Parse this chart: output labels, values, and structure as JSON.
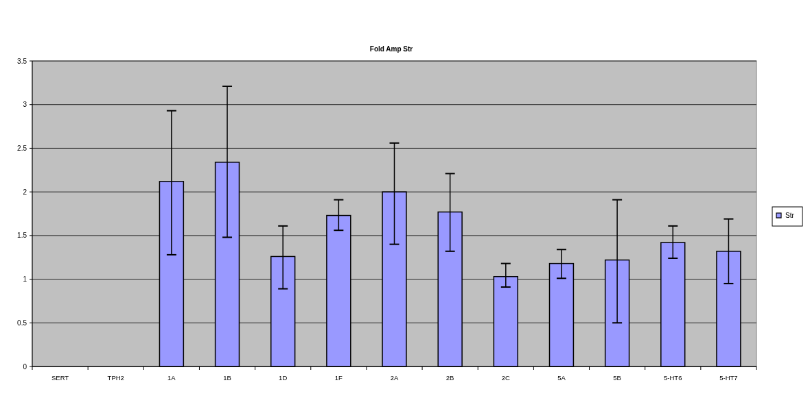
{
  "chart_data": {
    "type": "bar",
    "title": "Fold Amp Str",
    "categories": [
      "SERT",
      "TPH2",
      "1A",
      "1B",
      "1D",
      "1F",
      "2A",
      "2B",
      "2C",
      "5A",
      "5B",
      "5-HT6",
      "5-HT7"
    ],
    "series": [
      {
        "name": "Str",
        "color": "#9999ff",
        "values": [
          null,
          null,
          2.12,
          2.34,
          1.26,
          1.73,
          2.0,
          1.77,
          1.03,
          1.18,
          1.22,
          1.42,
          1.32
        ],
        "errors": [
          null,
          null,
          [
            1.28,
            2.93
          ],
          [
            1.48,
            3.21
          ],
          [
            0.89,
            1.61
          ],
          [
            1.56,
            1.91
          ],
          [
            1.4,
            2.56
          ],
          [
            1.32,
            2.21
          ],
          [
            0.91,
            1.18
          ],
          [
            1.01,
            1.34
          ],
          [
            0.5,
            1.91
          ],
          [
            1.24,
            1.61
          ],
          [
            0.95,
            1.69
          ]
        ]
      }
    ],
    "ylim": [
      0,
      3.5
    ],
    "yticks": [
      0,
      0.5,
      1,
      1.5,
      2,
      2.5,
      3,
      3.5
    ],
    "grid": "y",
    "legend": "right"
  }
}
